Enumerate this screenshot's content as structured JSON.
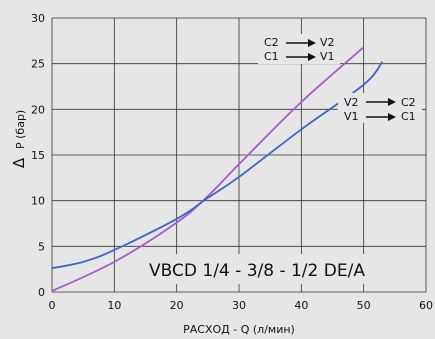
{
  "chart_data": {
    "type": "line",
    "title": "",
    "xlabel": "РАСХОД - Q (л/мин)",
    "ylabel_symbol": "Δ",
    "ylabel": "P (бар)",
    "xlim": [
      0,
      60
    ],
    "ylim": [
      0,
      30
    ],
    "xticks": [
      0,
      10,
      20,
      30,
      40,
      50,
      60
    ],
    "yticks": [
      0,
      5,
      10,
      15,
      20,
      25,
      30
    ],
    "grid": true,
    "series": [
      {
        "name": "C2 → V2 / C1 → V1",
        "color": "#a45cc8",
        "x": [
          0,
          10,
          20,
          25,
          30,
          40,
          50
        ],
        "y": [
          0.1,
          3.3,
          7.6,
          10.5,
          14.0,
          20.8,
          26.8
        ]
      },
      {
        "name": "V2 → C2 / V1 → C1",
        "color": "#3d63c9",
        "x": [
          0,
          5,
          10,
          20,
          25,
          30,
          40,
          50,
          53
        ],
        "y": [
          2.6,
          3.3,
          4.6,
          8.0,
          10.3,
          12.6,
          17.8,
          22.7,
          25.2
        ]
      }
    ],
    "annotations": {
      "model": "VBCD 1/4 - 3/8 - 1/2 DE/A",
      "flow_group_1": [
        {
          "from": "C2",
          "to": "V2"
        },
        {
          "from": "C1",
          "to": "V1"
        }
      ],
      "flow_group_2": [
        {
          "from": "V2",
          "to": "C2"
        },
        {
          "from": "V1",
          "to": "C1"
        }
      ]
    }
  }
}
